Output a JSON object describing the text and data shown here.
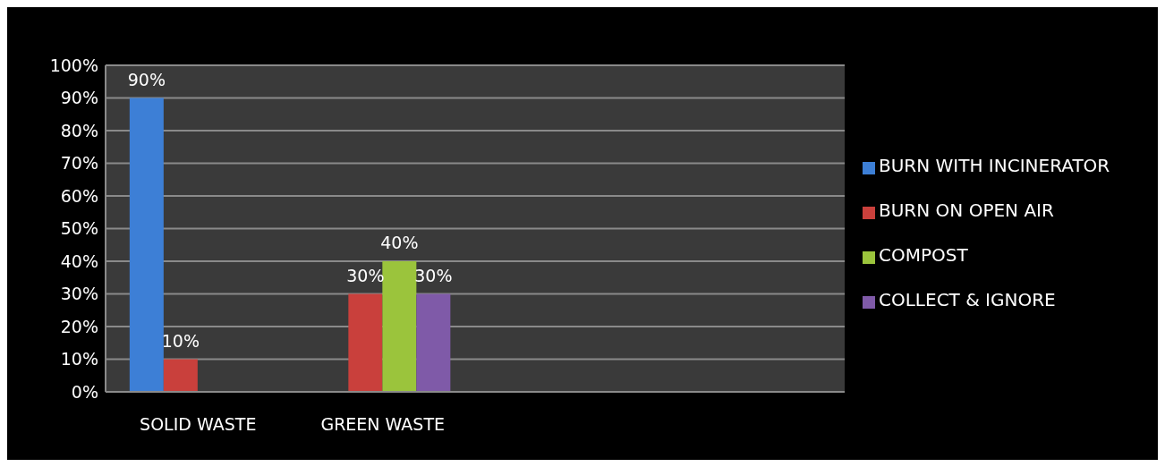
{
  "chart_data": {
    "type": "bar",
    "categories": [
      "SOLID WASTE",
      "GREEN WASTE",
      null,
      null
    ],
    "series": [
      {
        "name": "BURN WITH INCINERATOR",
        "color": "#3d7fd6",
        "values": [
          90,
          null,
          null,
          null
        ],
        "value_labels": [
          "90%",
          null,
          null,
          null
        ]
      },
      {
        "name": "BURN ON OPEN AIR",
        "color": "#c9403c",
        "values": [
          10,
          30,
          null,
          null
        ],
        "value_labels": [
          "10%",
          "30%",
          null,
          null
        ]
      },
      {
        "name": "COMPOST",
        "color": "#9bc43c",
        "values": [
          null,
          40,
          null,
          null
        ],
        "value_labels": [
          null,
          "40%",
          null,
          null
        ]
      },
      {
        "name": "COLLECT & IGNORE",
        "color": "#7f5aa8",
        "values": [
          null,
          30,
          null,
          null
        ],
        "value_labels": [
          null,
          "30%",
          null,
          null
        ]
      }
    ],
    "ylim": [
      0,
      100
    ],
    "yticks": [
      {
        "value": 0,
        "label": "0%"
      },
      {
        "value": 10,
        "label": "10%"
      },
      {
        "value": 20,
        "label": "20%"
      },
      {
        "value": 30,
        "label": "30%"
      },
      {
        "value": 40,
        "label": "40%"
      },
      {
        "value": 50,
        "label": "50%"
      },
      {
        "value": 60,
        "label": "60%"
      },
      {
        "value": 70,
        "label": "70%"
      },
      {
        "value": 80,
        "label": "80%"
      },
      {
        "value": 90,
        "label": "90%"
      },
      {
        "value": 100,
        "label": "100%"
      }
    ],
    "grid": "y",
    "legend": "right"
  }
}
